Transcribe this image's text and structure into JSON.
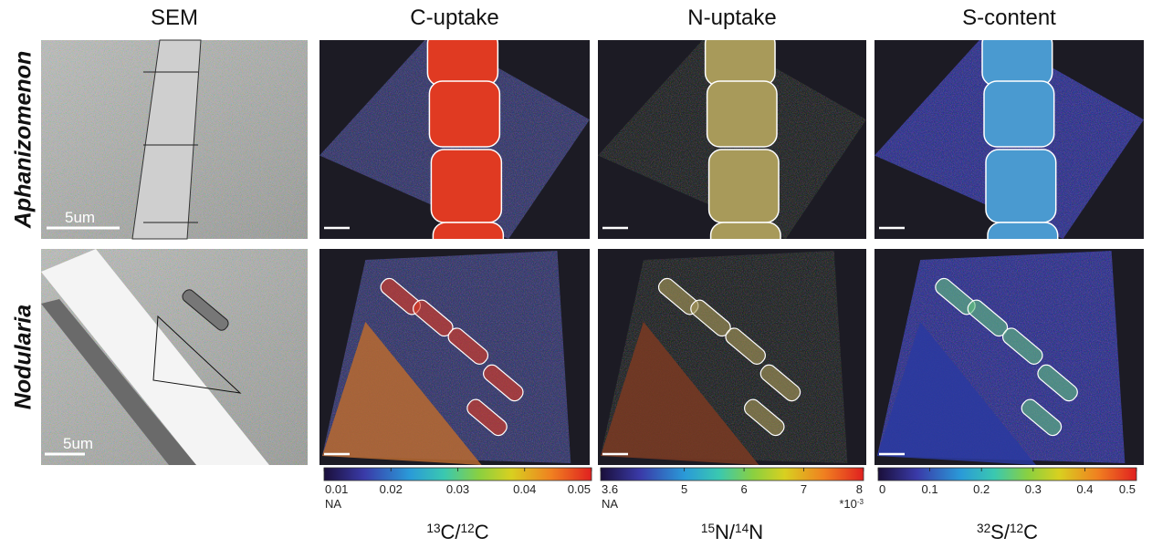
{
  "columns": [
    "SEM",
    "C-uptake",
    "N-uptake",
    "S-content"
  ],
  "rows": [
    "Aphanizomenon",
    "Nodularia"
  ],
  "scale_bars": [
    "5um",
    "5um"
  ],
  "colorbars": [
    {
      "lim": [
        0.01,
        0.05
      ],
      "ticks": [
        0.01,
        0.02,
        0.03,
        0.04,
        0.05
      ],
      "na": "NA",
      "label": [
        {
          "sup": "13"
        },
        {
          "text": "C/"
        },
        {
          "sup": "12"
        },
        {
          "text": "C"
        }
      ]
    },
    {
      "lim": [
        3.6,
        8
      ],
      "ticks": [
        3.6,
        5,
        6,
        7,
        8
      ],
      "na": "NA",
      "multiplier": [
        {
          "text": "*10"
        },
        {
          "sup": "-3"
        }
      ],
      "label": [
        {
          "sup": "15"
        },
        {
          "text": "N/"
        },
        {
          "sup": "14"
        },
        {
          "text": "N"
        }
      ]
    },
    {
      "lim": [
        0,
        0.5
      ],
      "ticks": [
        0,
        0.1,
        0.2,
        0.3,
        0.4,
        0.5
      ],
      "label": [
        {
          "sup": "32"
        },
        {
          "text": "S/"
        },
        {
          "sup": "12"
        },
        {
          "text": "C"
        }
      ]
    }
  ]
}
